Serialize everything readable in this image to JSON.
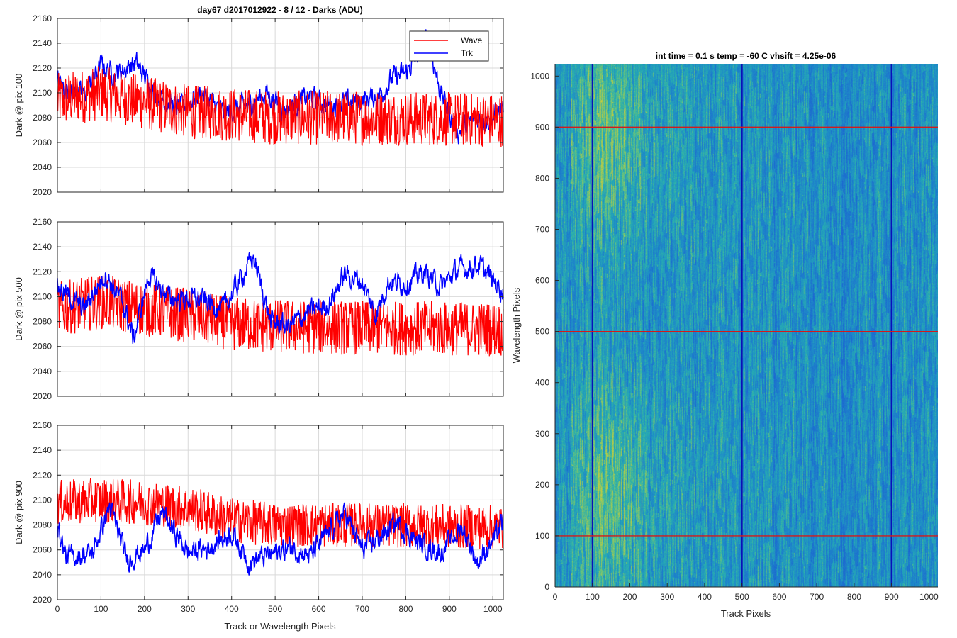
{
  "figure": {
    "title": "day67 d2017012922 - 8 / 12 - Darks (ADU)",
    "shared_xlabel": "Track or Wavelength Pixels"
  },
  "legend": {
    "wave_label": "Wave",
    "trk_label": "Trk"
  },
  "colors": {
    "wave": "#ff0000",
    "trk": "#0000ff",
    "grid": "#d9d9d9",
    "image_base": "#2a8fc4"
  },
  "chart_data": [
    {
      "type": "line",
      "ylabel": "Dark @ pix 100",
      "xlim": [
        0,
        1024
      ],
      "ylim": [
        2020,
        2160
      ],
      "xticks": [
        0,
        100,
        200,
        300,
        400,
        500,
        600,
        700,
        800,
        900,
        1000
      ],
      "yticks": [
        2020,
        2040,
        2060,
        2080,
        2100,
        2120,
        2140,
        2160
      ],
      "grid": true,
      "legend_position": "top-right",
      "series": [
        {
          "name": "Wave",
          "baseline": [
            [
              0,
              2094
            ],
            [
              100,
              2100
            ],
            [
              200,
              2092
            ],
            [
              300,
              2085
            ],
            [
              500,
              2080
            ],
            [
              700,
              2080
            ],
            [
              1024,
              2078
            ]
          ],
          "noise_amplitude": 22,
          "approx_range": [
            2037,
            2142
          ]
        },
        {
          "name": "Trk",
          "baseline": [
            [
              0,
              2110
            ],
            [
              20,
              2103
            ],
            [
              60,
              2098
            ],
            [
              100,
              2122
            ],
            [
              130,
              2115
            ],
            [
              180,
              2124
            ],
            [
              230,
              2098
            ],
            [
              280,
              2087
            ],
            [
              330,
              2100
            ],
            [
              380,
              2084
            ],
            [
              440,
              2090
            ],
            [
              480,
              2100
            ],
            [
              520,
              2087
            ],
            [
              580,
              2097
            ],
            [
              620,
              2090
            ],
            [
              700,
              2094
            ],
            [
              740,
              2098
            ],
            [
              770,
              2112
            ],
            [
              800,
              2116
            ],
            [
              830,
              2132
            ],
            [
              850,
              2145
            ],
            [
              880,
              2100
            ],
            [
              920,
              2068
            ],
            [
              960,
              2080
            ],
            [
              990,
              2078
            ],
            [
              1024,
              2088
            ]
          ],
          "noise_amplitude": 7,
          "approx_range": [
            2056,
            2152
          ]
        }
      ]
    },
    {
      "type": "line",
      "ylabel": "Dark @ pix 500",
      "xlim": [
        0,
        1024
      ],
      "ylim": [
        2020,
        2160
      ],
      "xticks": [
        0,
        100,
        200,
        300,
        400,
        500,
        600,
        700,
        800,
        900,
        1000
      ],
      "yticks": [
        2020,
        2040,
        2060,
        2080,
        2100,
        2120,
        2140,
        2160
      ],
      "grid": true,
      "series": [
        {
          "name": "Wave",
          "baseline": [
            [
              0,
              2090
            ],
            [
              100,
              2096
            ],
            [
              200,
              2090
            ],
            [
              300,
              2085
            ],
            [
              400,
              2078
            ],
            [
              500,
              2076
            ],
            [
              700,
              2075
            ],
            [
              1024,
              2074
            ]
          ],
          "noise_amplitude": 22,
          "approx_range": [
            2034,
            2153
          ]
        },
        {
          "name": "Trk",
          "baseline": [
            [
              0,
              2108
            ],
            [
              60,
              2090
            ],
            [
              110,
              2118
            ],
            [
              150,
              2095
            ],
            [
              175,
              2066
            ],
            [
              210,
              2117
            ],
            [
              260,
              2098
            ],
            [
              300,
              2098
            ],
            [
              330,
              2098
            ],
            [
              380,
              2090
            ],
            [
              450,
              2132
            ],
            [
              490,
              2080
            ],
            [
              530,
              2076
            ],
            [
              580,
              2088
            ],
            [
              620,
              2093
            ],
            [
              660,
              2118
            ],
            [
              700,
              2112
            ],
            [
              730,
              2085
            ],
            [
              760,
              2112
            ],
            [
              800,
              2110
            ],
            [
              840,
              2120
            ],
            [
              880,
              2108
            ],
            [
              920,
              2122
            ],
            [
              970,
              2125
            ],
            [
              1024,
              2104
            ]
          ],
          "noise_amplitude": 7,
          "approx_range": [
            2052,
            2139
          ]
        }
      ]
    },
    {
      "type": "line",
      "ylabel": "Dark @ pix 900",
      "xlabel": "Track or Wavelength Pixels",
      "xlim": [
        0,
        1024
      ],
      "ylim": [
        2020,
        2160
      ],
      "xticks": [
        0,
        100,
        200,
        300,
        400,
        500,
        600,
        700,
        800,
        900,
        1000
      ],
      "yticks": [
        2020,
        2040,
        2060,
        2080,
        2100,
        2120,
        2140,
        2160
      ],
      "grid": true,
      "series": [
        {
          "name": "Wave",
          "baseline": [
            [
              0,
              2098
            ],
            [
              100,
              2100
            ],
            [
              200,
              2098
            ],
            [
              300,
              2094
            ],
            [
              400,
              2084
            ],
            [
              500,
              2080
            ],
            [
              700,
              2080
            ],
            [
              1024,
              2078
            ]
          ],
          "noise_amplitude": 18,
          "approx_range": [
            2038,
            2143
          ]
        },
        {
          "name": "Trk",
          "baseline": [
            [
              0,
              2080
            ],
            [
              20,
              2054
            ],
            [
              80,
              2057
            ],
            [
              120,
              2095
            ],
            [
              160,
              2052
            ],
            [
              200,
              2060
            ],
            [
              240,
              2090
            ],
            [
              300,
              2058
            ],
            [
              350,
              2062
            ],
            [
              400,
              2074
            ],
            [
              440,
              2050
            ],
            [
              500,
              2058
            ],
            [
              540,
              2062
            ],
            [
              580,
              2055
            ],
            [
              660,
              2090
            ],
            [
              700,
              2060
            ],
            [
              740,
              2070
            ],
            [
              780,
              2082
            ],
            [
              830,
              2065
            ],
            [
              880,
              2058
            ],
            [
              930,
              2078
            ],
            [
              965,
              2050
            ],
            [
              1000,
              2068
            ],
            [
              1024,
              2082
            ]
          ],
          "noise_amplitude": 7,
          "approx_range": [
            2033,
            2098
          ]
        }
      ]
    },
    {
      "type": "heatmap",
      "title": "int time = 0.1 s   temp = -60 C   vhsift = 4.25e-06",
      "xlabel": "Track Pixels",
      "ylabel": "Wavelength Pixels",
      "xlim": [
        0,
        1024
      ],
      "ylim": [
        0,
        1024
      ],
      "xticks": [
        0,
        100,
        200,
        300,
        400,
        500,
        600,
        700,
        800,
        900,
        1000
      ],
      "yticks": [
        0,
        100,
        200,
        300,
        400,
        500,
        600,
        700,
        800,
        900,
        1000
      ],
      "colormap": "parula-like (blue to yellow-green)",
      "marker_lines": {
        "horizontal_red_at_wavelength": [
          100,
          500,
          900
        ],
        "vertical_blue_at_track": [
          100,
          500,
          900
        ]
      },
      "pattern": "brighter yellow-green streaks near track 50-300, blue elsewhere"
    }
  ]
}
